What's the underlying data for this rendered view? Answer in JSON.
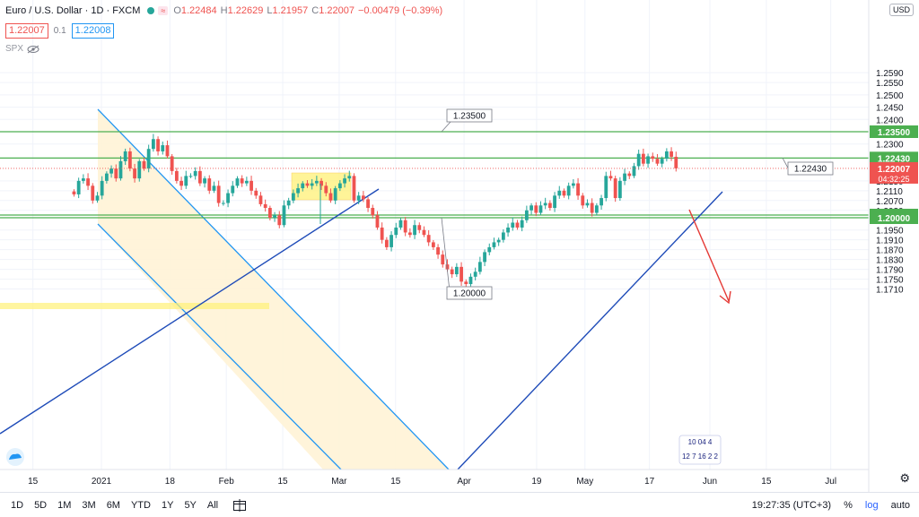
{
  "legend": {
    "title": "Euro / U.S. Dollar · 1D · FXCM",
    "ohlc": [
      {
        "k": "O",
        "v": "1.22484"
      },
      {
        "k": "H",
        "v": "1.22629"
      },
      {
        "k": "L",
        "v": "1.21957"
      },
      {
        "k": "C",
        "v": "1.22007"
      }
    ],
    "change": "−0.00479 (−0.39%)",
    "bid": "1.22007",
    "spread": "0.1",
    "ask": "1.22008",
    "indicator": "SPX"
  },
  "price_axis": {
    "currency": "USD",
    "ticks": [
      {
        "label": "1.2590",
        "value": 1.259
      },
      {
        "label": "1.2550",
        "value": 1.255
      },
      {
        "label": "1.2500",
        "value": 1.25
      },
      {
        "label": "1.2450",
        "value": 1.245
      },
      {
        "label": "1.2400",
        "value": 1.24
      },
      {
        "label": "1.2300",
        "value": 1.23
      },
      {
        "label": "1.2150",
        "value": 1.215
      },
      {
        "label": "1.2110",
        "value": 1.211
      },
      {
        "label": "1.2070",
        "value": 1.207
      },
      {
        "label": "1.2030",
        "value": 1.203
      },
      {
        "label": "1.1950",
        "value": 1.195
      },
      {
        "label": "1.1910",
        "value": 1.191
      },
      {
        "label": "1.1870",
        "value": 1.187
      },
      {
        "label": "1.1830",
        "value": 1.183
      },
      {
        "label": "1.1790",
        "value": 1.179
      },
      {
        "label": "1.1750",
        "value": 1.175
      },
      {
        "label": "1.1710",
        "value": 1.171
      }
    ],
    "labels": [
      {
        "text": "1.23500",
        "value": 1.235,
        "color": "#4caf50"
      },
      {
        "text": "1.22430",
        "value": 1.2243,
        "color": "#4caf50"
      },
      {
        "text": "1.20110",
        "value": 1.2011,
        "color": "#4caf50"
      },
      {
        "text": "1.20000",
        "value": 1.2,
        "color": "#4caf50"
      }
    ],
    "current": {
      "price": "1.22007",
      "countdown": "04:32:25",
      "value": 1.22007,
      "color": "#ef5350"
    }
  },
  "time_axis": [
    {
      "label": "15",
      "day": -17
    },
    {
      "label": "2021",
      "day": 0
    },
    {
      "label": "18",
      "day": 17
    },
    {
      "label": "Feb",
      "day": 31
    },
    {
      "label": "15",
      "day": 45
    },
    {
      "label": "Mar",
      "day": 59
    },
    {
      "label": "15",
      "day": 73
    },
    {
      "label": "Apr",
      "day": 90
    },
    {
      "label": "19",
      "day": 108
    },
    {
      "label": "May",
      "day": 120
    },
    {
      "label": "17",
      "day": 136
    },
    {
      "label": "Jun",
      "day": 151
    },
    {
      "label": "15",
      "day": 165
    },
    {
      "label": "Jul",
      "day": 181
    }
  ],
  "annotations": {
    "callouts": [
      {
        "text": "1.23500",
        "value": 1.235
      },
      {
        "text": "1.22430",
        "value": 1.2243
      },
      {
        "text": "1.20000",
        "value": 1.2
      }
    ]
  },
  "events": {
    "row1": "10 04  4",
    "row2": "12 7 16 2 2"
  },
  "bottom_bar": {
    "timeframes": [
      "1D",
      "5D",
      "1M",
      "3M",
      "6M",
      "YTD",
      "1Y",
      "5Y",
      "All"
    ],
    "clock": "19:27:35 (UTC+3)",
    "percent": "%",
    "log": "log",
    "auto": "auto"
  },
  "colors": {
    "up": "#26a69a",
    "down": "#ef5350",
    "level": "#4caf50",
    "trend": "#1e4bb8",
    "channel": "#2196f3",
    "arrow": "#e53935"
  },
  "chart_data": {
    "type": "candlestick",
    "instrument": "EURUSD",
    "timeframe": "1D",
    "ylim": [
      1.169,
      1.261
    ],
    "levels": [
      1.235,
      1.2243,
      1.2011,
      1.2
    ],
    "closes": [
      1.2095,
      1.215,
      1.216,
      1.213,
      1.207,
      1.209,
      1.215,
      1.218,
      1.22,
      1.216,
      1.223,
      1.227,
      1.22,
      1.216,
      1.223,
      1.22,
      1.228,
      1.232,
      1.227,
      1.2295,
      1.225,
      1.219,
      1.215,
      1.213,
      1.217,
      1.217,
      1.219,
      1.214,
      1.216,
      1.211,
      1.213,
      1.206,
      1.206,
      1.21,
      1.213,
      1.216,
      1.214,
      1.215,
      1.211,
      1.209,
      1.2055,
      1.204,
      1.2,
      1.201,
      1.197,
      1.205,
      1.207,
      1.21,
      1.212,
      1.214,
      1.213,
      1.214,
      1.215,
      1.213,
      1.21,
      1.207,
      1.212,
      1.214,
      1.216,
      1.217,
      1.207,
      1.209,
      1.2075,
      1.204,
      1.201,
      1.196,
      1.191,
      1.188,
      1.193,
      1.196,
      1.199,
      1.194,
      1.193,
      1.197,
      1.195,
      1.193,
      1.19,
      1.188,
      1.185,
      1.181,
      1.179,
      1.177,
      1.18,
      1.174,
      1.173,
      1.176,
      1.178,
      1.182,
      1.186,
      1.188,
      1.19,
      1.191,
      1.194,
      1.196,
      1.198,
      1.196,
      1.199,
      1.203,
      1.205,
      1.202,
      1.205,
      1.206,
      1.204,
      1.209,
      1.211,
      1.209,
      1.213,
      1.214,
      1.209,
      1.205,
      1.206,
      1.202,
      1.205,
      1.208,
      1.217,
      1.216,
      1.208,
      1.215,
      1.218,
      1.217,
      1.221,
      1.226,
      1.222,
      1.225,
      1.224,
      1.222,
      1.224,
      1.227,
      1.2248,
      1.2201
    ]
  }
}
